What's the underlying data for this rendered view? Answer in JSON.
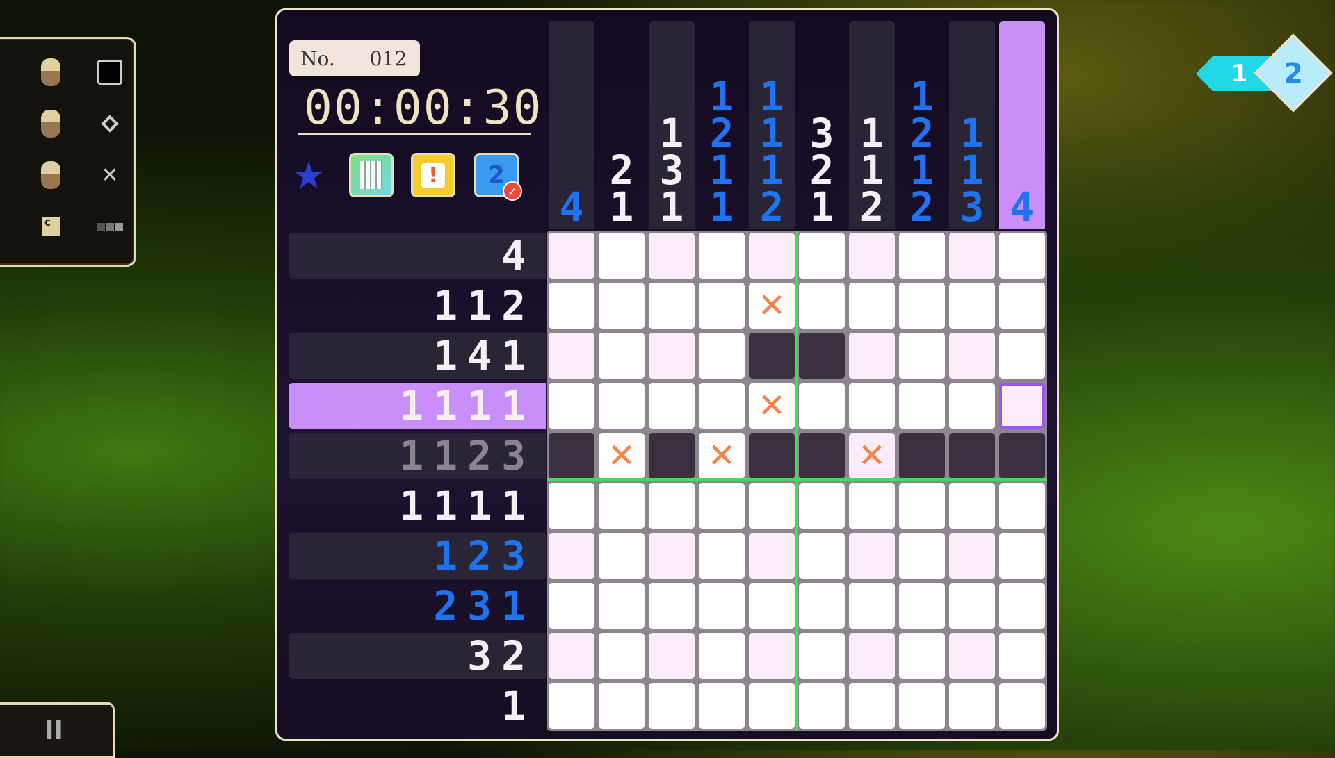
{
  "controls": [
    {
      "icon": "left-mouse-icon",
      "action": "fill-square-icon"
    },
    {
      "icon": "middle-mouse-icon",
      "action": "diamond-mark-icon"
    },
    {
      "icon": "right-mouse-icon",
      "action": "cross-mark-icon"
    },
    {
      "icon": "c-key-icon",
      "key": "C",
      "action": "toggle-icon"
    }
  ],
  "puzzle": {
    "label": "No.",
    "number": "012",
    "timer": "00:00:30"
  },
  "tools": [
    "rank-badge-icon",
    "grid-preview-icon",
    "hint-icon",
    "check-icon"
  ],
  "tool_check_digit": "2",
  "pager": {
    "current": "1",
    "next": "2"
  },
  "pause_label": "II",
  "colors": {
    "clue_normal": "#f4f0f4",
    "clue_blue": "#1f73f0",
    "clue_done": "#8a8490",
    "highlight": "#c98ef7",
    "cross": "#f5834a",
    "divider": "#3fe050"
  },
  "col_clues": [
    {
      "nums": [
        "4"
      ],
      "state": "blue"
    },
    {
      "nums": [
        "2",
        "1"
      ],
      "state": "normal"
    },
    {
      "nums": [
        "1",
        "3",
        "1"
      ],
      "state": "normal"
    },
    {
      "nums": [
        "1",
        "2",
        "1",
        "1"
      ],
      "state": "blue"
    },
    {
      "nums": [
        "1",
        "1",
        "1",
        "2"
      ],
      "state": "blue"
    },
    {
      "nums": [
        "3",
        "2",
        "1"
      ],
      "state": "normal"
    },
    {
      "nums": [
        "1",
        "1",
        "2"
      ],
      "state": "normal"
    },
    {
      "nums": [
        "1",
        "2",
        "1",
        "2"
      ],
      "state": "blue"
    },
    {
      "nums": [
        "1",
        "1",
        "3"
      ],
      "state": "blue"
    },
    {
      "nums": [
        "4"
      ],
      "state": "blue",
      "highlighted": true
    }
  ],
  "row_clues": [
    {
      "text": "4",
      "state": "normal"
    },
    {
      "text": "112",
      "state": "normal"
    },
    {
      "text": "141",
      "state": "normal"
    },
    {
      "text": "1111",
      "state": "normal",
      "highlighted": true
    },
    {
      "text": "1123",
      "state": "done"
    },
    {
      "text": "1111",
      "state": "normal"
    },
    {
      "text": "123",
      "state": "blue"
    },
    {
      "text": "231",
      "state": "blue"
    },
    {
      "text": "32",
      "state": "normal"
    },
    {
      "text": "1",
      "state": "normal"
    }
  ],
  "grid": [
    [
      "e",
      "e",
      "e",
      "e",
      "e",
      "e",
      "e",
      "e",
      "e",
      "e"
    ],
    [
      "e",
      "e",
      "e",
      "e",
      "x",
      "e",
      "e",
      "e",
      "e",
      "e"
    ],
    [
      "e",
      "e",
      "e",
      "e",
      "f",
      "f",
      "e",
      "e",
      "e",
      "e"
    ],
    [
      "e",
      "e",
      "e",
      "e",
      "x",
      "e",
      "e",
      "e",
      "e",
      "e"
    ],
    [
      "f",
      "x",
      "f",
      "x",
      "f",
      "f",
      "x",
      "f",
      "f",
      "f"
    ],
    [
      "e",
      "e",
      "e",
      "e",
      "e",
      "e",
      "e",
      "e",
      "e",
      "e"
    ],
    [
      "e",
      "e",
      "e",
      "e",
      "e",
      "e",
      "e",
      "e",
      "e",
      "e"
    ],
    [
      "e",
      "e",
      "e",
      "e",
      "e",
      "e",
      "e",
      "e",
      "e",
      "e"
    ],
    [
      "e",
      "e",
      "e",
      "e",
      "e",
      "e",
      "e",
      "e",
      "e",
      "e"
    ],
    [
      "e",
      "e",
      "e",
      "e",
      "e",
      "e",
      "e",
      "e",
      "e",
      "e"
    ]
  ],
  "cursor": {
    "row": 3,
    "col": 9
  },
  "cross_glyph": "✕"
}
